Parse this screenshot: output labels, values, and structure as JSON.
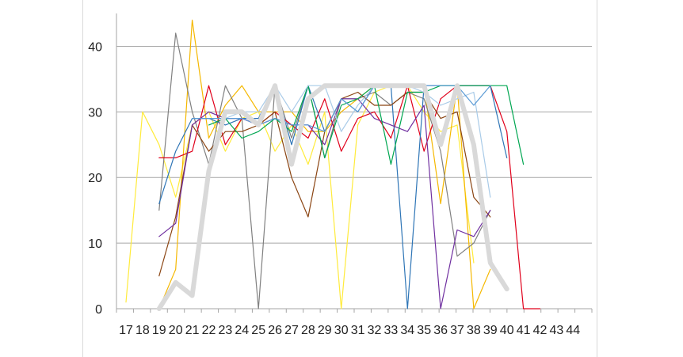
{
  "chart_data": {
    "type": "line",
    "title": "",
    "xlabel": "",
    "ylabel": "",
    "categories": [
      "17",
      "18",
      "19",
      "20",
      "21",
      "22",
      "23",
      "24",
      "25",
      "26",
      "27",
      "28",
      "29",
      "30",
      "31",
      "32",
      "33",
      "34",
      "35",
      "36",
      "37",
      "38",
      "39",
      "40",
      "41",
      "42",
      "43",
      "44"
    ],
    "ylim": [
      0,
      45
    ],
    "yticks": [
      0,
      10,
      20,
      30,
      40
    ],
    "grid": true,
    "legend": "none",
    "series": [
      {
        "color": "#ffeb3b",
        "width": 1.2,
        "values": [
          1,
          30,
          25,
          17,
          28,
          30,
          24,
          29,
          30,
          24,
          28,
          22,
          30,
          0,
          28,
          33,
          34,
          34,
          30,
          27,
          28,
          7,
          null,
          null,
          null,
          null,
          null,
          null
        ]
      },
      {
        "color": "#f5b800",
        "width": 1.2,
        "values": [
          null,
          null,
          0,
          6,
          44,
          26,
          31,
          34,
          30,
          30,
          30,
          27,
          27,
          30,
          32,
          34,
          34,
          34,
          34,
          16,
          34,
          0,
          6,
          null,
          null,
          null,
          null,
          null
        ]
      },
      {
        "color": "#808080",
        "width": 1.2,
        "values": [
          null,
          null,
          15,
          42,
          30,
          22,
          34,
          29,
          0,
          34,
          26,
          34,
          23,
          32,
          32,
          33,
          31,
          33,
          32,
          24,
          8,
          10,
          15,
          null,
          null,
          null,
          null,
          null
        ]
      },
      {
        "color": "#e0001b",
        "width": 1.2,
        "values": [
          null,
          null,
          23,
          23,
          24,
          34,
          25,
          29,
          28,
          30,
          28,
          26,
          32,
          24,
          29,
          30,
          26,
          34,
          24,
          32,
          34,
          34,
          34,
          27,
          0,
          0,
          null,
          null
        ]
      },
      {
        "color": "#2e75b6",
        "width": 1.2,
        "values": [
          null,
          null,
          16,
          24,
          29,
          29,
          28,
          29,
          29,
          34,
          25,
          34,
          27,
          32,
          30,
          34,
          34,
          0,
          34,
          34,
          34,
          34,
          34,
          23,
          null,
          null,
          null,
          null
        ]
      },
      {
        "color": "#8b4513",
        "width": 1.2,
        "values": [
          null,
          null,
          5,
          14,
          28,
          24,
          27,
          27,
          28,
          30,
          20,
          14,
          27,
          32,
          33,
          31,
          31,
          33,
          33,
          29,
          30,
          17,
          14,
          null,
          null,
          null,
          null,
          null
        ]
      },
      {
        "color": "#7030a0",
        "width": 1.2,
        "values": [
          null,
          null,
          11,
          13,
          28,
          30,
          29,
          29,
          28,
          29,
          28,
          28,
          25,
          32,
          32,
          29,
          28,
          27,
          31,
          0,
          12,
          11,
          15,
          null,
          null,
          null,
          null,
          null
        ]
      },
      {
        "color": "#00a651",
        "width": 1.2,
        "values": [
          null,
          null,
          null,
          null,
          null,
          28,
          29,
          26,
          27,
          29,
          27,
          34,
          23,
          31,
          32,
          34,
          22,
          33,
          33,
          34,
          34,
          34,
          34,
          34,
          22,
          null,
          null,
          null
        ]
      },
      {
        "color": "#a9cbe8",
        "width": 1.2,
        "values": [
          null,
          null,
          null,
          null,
          null,
          29,
          29,
          30,
          30,
          34,
          30,
          34,
          34,
          27,
          31,
          34,
          34,
          34,
          33,
          31,
          32,
          33,
          17,
          null,
          null,
          null,
          null,
          null
        ]
      },
      {
        "color": "#5b9bd5",
        "width": 1.2,
        "values": [
          null,
          null,
          null,
          null,
          29,
          29,
          29,
          29,
          28,
          29,
          28,
          28,
          27,
          32,
          30,
          34,
          34,
          34,
          34,
          34,
          34,
          31,
          34,
          null,
          null,
          null,
          null,
          null
        ]
      },
      {
        "color": "#d9d9d9",
        "width": 6,
        "values": [
          null,
          null,
          0,
          4,
          2,
          21,
          30,
          30,
          28,
          34,
          22,
          32,
          34,
          34,
          34,
          34,
          34,
          34,
          34,
          25,
          34,
          25,
          7,
          3,
          null,
          null,
          null,
          null
        ]
      }
    ]
  }
}
